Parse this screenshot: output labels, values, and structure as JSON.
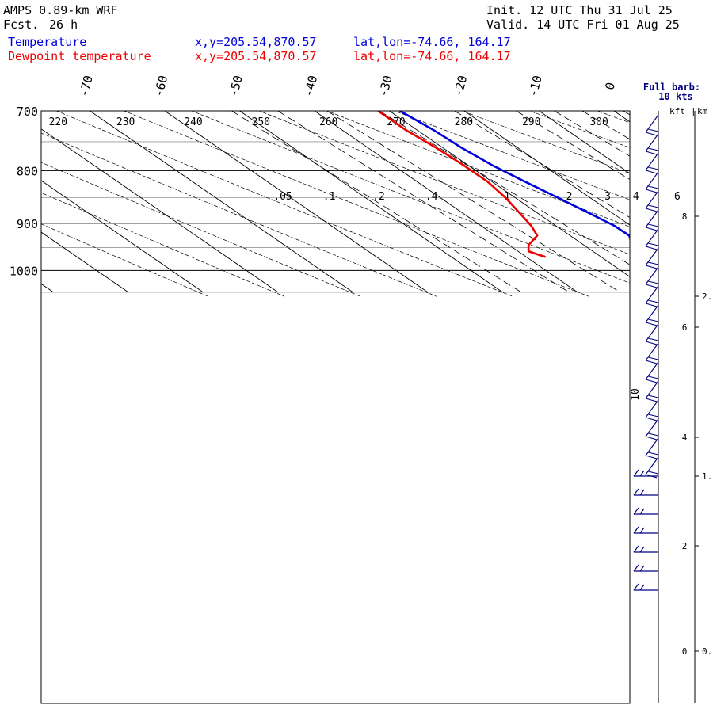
{
  "header": {
    "model": "AMPS 0.89-km WRF",
    "fcst_label": "Fcst.",
    "fcst_value": "26 h",
    "init": "Init. 12 UTC Thu 31 Jul 25",
    "valid": "Valid. 14 UTC Fri 01 Aug 25"
  },
  "colors": {
    "temperature": "#0000dd",
    "dewpoint": "#ee0000",
    "barb": "#000080"
  },
  "chart_data": {
    "type": "line",
    "diagram": "skew-T log-p",
    "series": [
      {
        "name": "Temperature",
        "location": "x,y=205.54,870.57",
        "latlon": "lat,lon=-74.66, 164.17",
        "color": "#0000dd",
        "points": [
          {
            "p": 700,
            "t": -28.6
          },
          {
            "p": 730,
            "t": -27.8
          },
          {
            "p": 760,
            "t": -27.5
          },
          {
            "p": 790,
            "t": -26.8
          },
          {
            "p": 820,
            "t": -25.6
          },
          {
            "p": 850,
            "t": -24.3
          },
          {
            "p": 880,
            "t": -23.1
          },
          {
            "p": 905,
            "t": -22.2
          },
          {
            "p": 925,
            "t": -22.1
          },
          {
            "p": 940,
            "t": -23.2
          },
          {
            "p": 955,
            "t": -24.6
          },
          {
            "p": 967,
            "t": -24.7
          }
        ]
      },
      {
        "name": "Dewpoint temperature",
        "location": "x,y=205.54,870.57",
        "latlon": "lat,lon=-74.66, 164.17",
        "color": "#ee0000",
        "points": [
          {
            "p": 700,
            "dp": -31.5
          },
          {
            "p": 730,
            "dp": -31.5
          },
          {
            "p": 760,
            "dp": -30.9
          },
          {
            "p": 790,
            "dp": -30.6
          },
          {
            "p": 820,
            "dp": -30.6
          },
          {
            "p": 850,
            "dp": -31.3
          },
          {
            "p": 880,
            "dp": -32.4
          },
          {
            "p": 905,
            "dp": -33.3
          },
          {
            "p": 925,
            "dp": -34.4
          },
          {
            "p": 945,
            "dp": -37.4
          },
          {
            "p": 958,
            "dp": -38.6
          },
          {
            "p": 967,
            "dp": -37.8
          },
          {
            "p": 970,
            "dp": -37.4
          }
        ]
      }
    ],
    "pressure_range": [
      700,
      1050
    ],
    "pressure_labels": [
      "700",
      "800",
      "900",
      "1000"
    ],
    "temperature_labels": [
      "-70",
      "-60",
      "-50",
      "-40",
      "-30",
      "-20",
      "-10",
      "0"
    ],
    "theta_labels": [
      "220",
      "230",
      "240",
      "250",
      "260",
      "270",
      "280",
      "290",
      "300"
    ],
    "mixing_ratio_labels": [
      ".05",
      ".1",
      ".2",
      ".4",
      "1",
      "2",
      "3",
      "4",
      "6"
    ],
    "wind_legend": {
      "title": "Full barb:",
      "value": "10 kts"
    },
    "height_axis": {
      "units": [
        "kft",
        "km"
      ],
      "kft_labels": [
        "8",
        "6",
        "4",
        "2",
        "0"
      ],
      "km_labels": [
        "2.",
        "1.",
        "0."
      ]
    },
    "side_label": "10",
    "wind_barb_count": 26
  }
}
